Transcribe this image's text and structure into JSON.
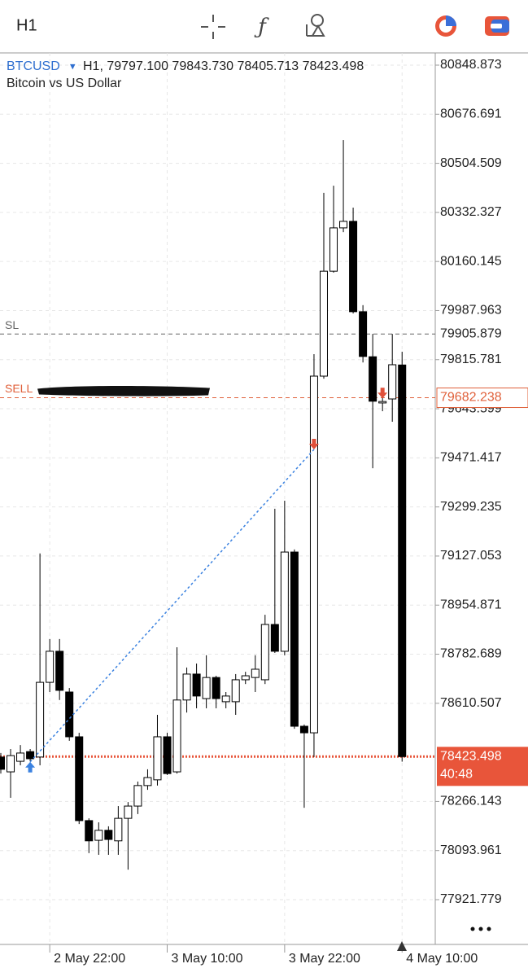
{
  "toolbar": {
    "timeframe": "H1"
  },
  "chart_data": {
    "type": "candlestick",
    "symbol": "BTCUSD",
    "symbol_menu": "▾",
    "info": "H1, 79797.100 79843.730 78405.713 78423.498",
    "title": "Bitcoin vs US Dollar",
    "categories": [
      null,
      null,
      null,
      null,
      null,
      "2 May 22:00",
      null,
      null,
      null,
      null,
      null,
      null,
      null,
      null,
      null,
      null,
      null,
      "3 May 10:00",
      null,
      null,
      null,
      null,
      null,
      null,
      null,
      null,
      null,
      null,
      null,
      "3 May 22:00",
      null,
      null,
      null,
      null,
      null,
      null,
      null,
      null,
      null,
      null,
      null,
      "4 May 10:00"
    ],
    "open": [
      78422,
      78370,
      78407,
      78441,
      78422,
      78684,
      78793,
      78650,
      78493,
      78199,
      78130,
      78165,
      78128,
      78207,
      78250,
      78322,
      78342,
      78493,
      78370,
      78622,
      78713,
      78627,
      78701,
      78616,
      78616,
      78693,
      78701,
      78693,
      78887,
      78793,
      79141,
      78530,
      78507,
      79758,
      80126,
      80278,
      80301,
      79984,
      79826,
      79664,
      79678,
      79797.1
    ],
    "high": [
      78436,
      78450,
      78464,
      78450,
      79136,
      78836,
      78836,
      78664,
      78507,
      78207,
      78193,
      78179,
      78250,
      78264,
      78336,
      78379,
      78570,
      78507,
      78807,
      78736,
      78750,
      78779,
      78707,
      78650,
      78713,
      78721,
      78779,
      78921,
      79293,
      79321,
      79150,
      78536,
      79835,
      80401,
      80426,
      80586,
      80349,
      80007,
      79906,
      79712,
      79906,
      79843.73
    ],
    "low": [
      78364,
      78279,
      78393,
      78407,
      78393,
      78650,
      78622,
      78479,
      78187,
      78085,
      78079,
      78079,
      78079,
      78027,
      78222,
      78307,
      78322,
      78359,
      78364,
      78578,
      78593,
      78593,
      78593,
      78593,
      78570,
      78678,
      78650,
      78678,
      78787,
      78779,
      78521,
      78244,
      78422,
      79749,
      80121,
      80263,
      79978,
      79806,
      79435,
      79635,
      79598,
      78405.713
    ],
    "close": [
      78379,
      78427,
      78436,
      78416,
      78684,
      78793,
      78656,
      78493,
      78199,
      78128,
      78165,
      78133,
      78207,
      78250,
      78322,
      78350,
      78493,
      78364,
      78622,
      78713,
      78636,
      78701,
      78627,
      78636,
      78693,
      78707,
      78730,
      78887,
      78793,
      79141,
      78530,
      78507,
      79758,
      80126,
      80278,
      80301,
      79984,
      79827,
      79670,
      79669,
      79798,
      78423.498
    ],
    "up_color": "#ffffff",
    "down_color": "#000000",
    "ylim": [
      77764.7,
      80891.7
    ],
    "yticks": [
      80848.873,
      80676.691,
      80504.509,
      80332.327,
      80160.145,
      79987.963,
      79815.781,
      79643.599,
      79471.417,
      79299.235,
      79127.053,
      78954.871,
      78782.689,
      78610.507,
      78266.143,
      78093.961,
      77921.779
    ],
    "grid": true,
    "levels": [
      {
        "label": "SL",
        "value": 79905.879,
        "color": "#666666",
        "boxed": false
      },
      {
        "label": "SELL",
        "value": 79682.238,
        "color": "#e0603a",
        "boxed": true
      }
    ],
    "current_price": 78423.498,
    "current_color": "#e8553a",
    "timer": "40:48",
    "entries": [
      {
        "side": "buy",
        "bar": 3,
        "price": 78405,
        "color": "#3b82e0"
      },
      {
        "side": "sell",
        "bar": 32,
        "price": 79501,
        "color": "#e0503a"
      },
      {
        "side": "sell",
        "bar": 39,
        "price": 79680,
        "color": "#e0503a"
      }
    ]
  }
}
